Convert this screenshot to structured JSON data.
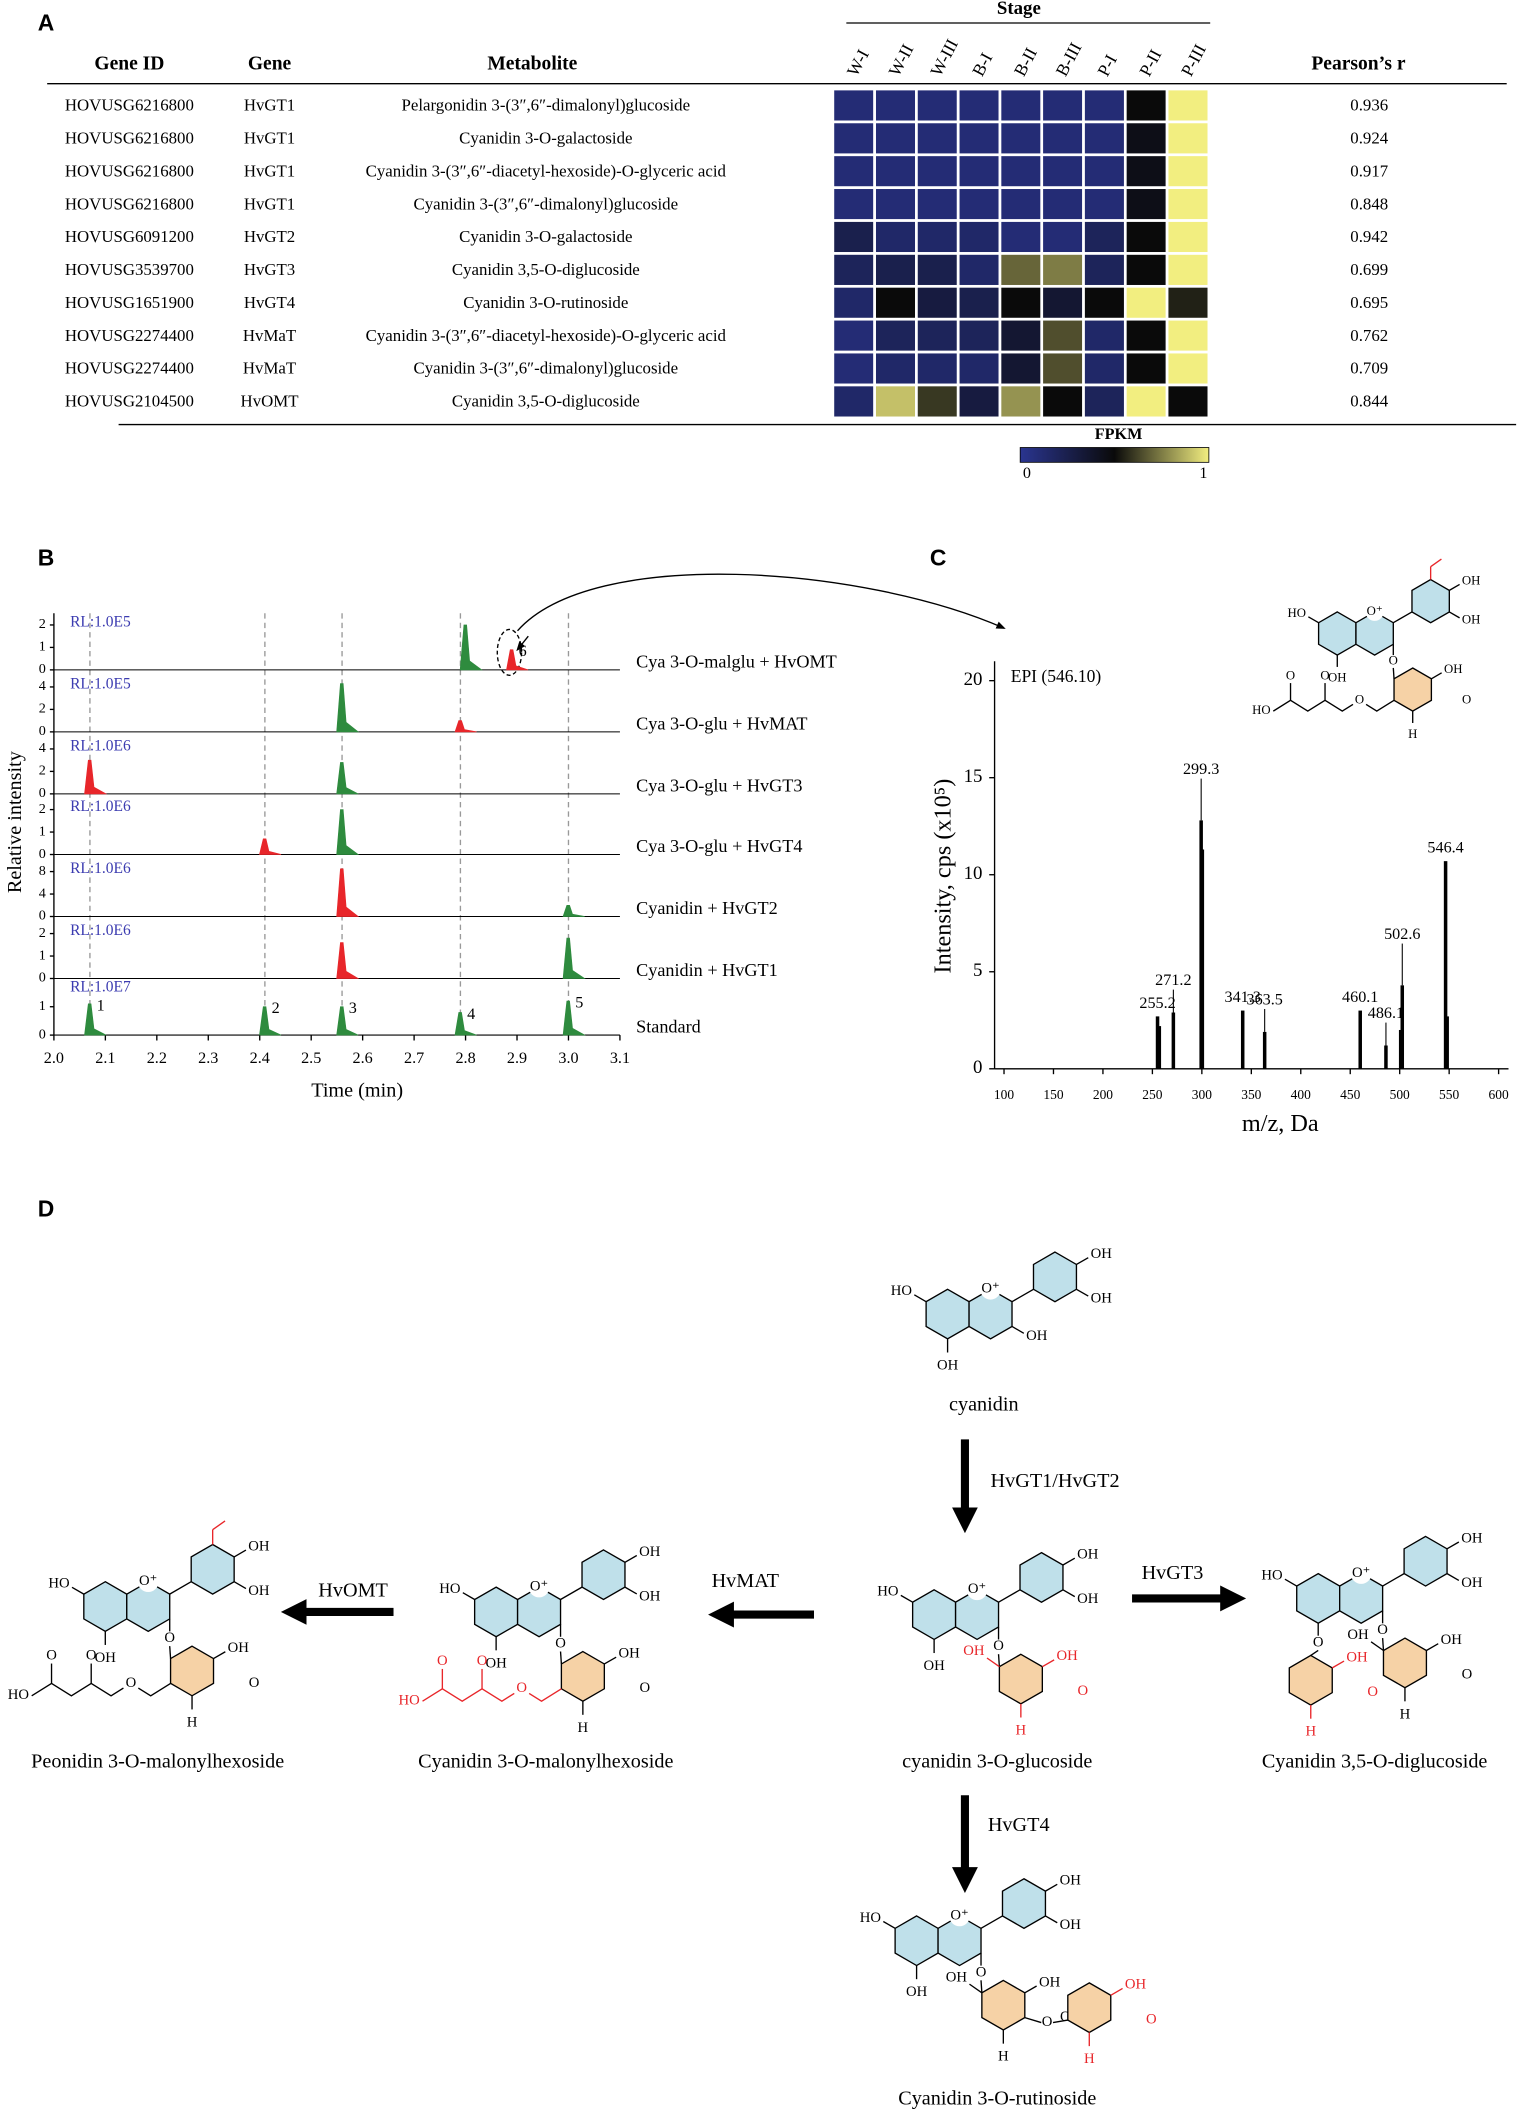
{
  "panel_labels": {
    "a": "A",
    "b": "B",
    "c": "C",
    "d": "D"
  },
  "chem_labels": {
    "HO": "HO",
    "OH": "OH",
    "O_plus": "O⁺",
    "O": "O",
    "H": "H"
  },
  "panel_a": {
    "headers": {
      "gene_id": "Gene ID",
      "gene": "Gene",
      "metabolite": "Metabolite",
      "pearson": "Pearson’s r"
    },
    "stage_title": "Stage",
    "stages": [
      "W-I",
      "W-II",
      "W-III",
      "B-I",
      "B-II",
      "B-III",
      "P-I",
      "P-II",
      "P-III"
    ],
    "rows": [
      {
        "gene_id": "HOVUSG6216800",
        "gene": "HvGT1",
        "metabolite": "Pelargonidin 3-(3″,6″-dimalonyl)glucoside",
        "fpkm": [
          0.1,
          0.1,
          0.1,
          0.1,
          0.1,
          0.1,
          0.1,
          0.5,
          1
        ],
        "pearson": 0.936
      },
      {
        "gene_id": "HOVUSG6216800",
        "gene": "HvGT1",
        "metabolite": "Cyanidin 3-O-galactoside",
        "fpkm": [
          0.1,
          0.1,
          0.1,
          0.1,
          0.1,
          0.1,
          0.1,
          0.45,
          1
        ],
        "pearson": 0.924
      },
      {
        "gene_id": "HOVUSG6216800",
        "gene": "HvGT1",
        "metabolite": "Cyanidin 3-(3″,6″-diacetyl-hexoside)-O-glyceric acid",
        "fpkm": [
          0.1,
          0.1,
          0.1,
          0.1,
          0.1,
          0.1,
          0.1,
          0.45,
          1
        ],
        "pearson": 0.917
      },
      {
        "gene_id": "HOVUSG6216800",
        "gene": "HvGT1",
        "metabolite": "Cyanidin 3-(3″,6″-dimalonyl)glucoside",
        "fpkm": [
          0.1,
          0.1,
          0.1,
          0.1,
          0.1,
          0.1,
          0.1,
          0.45,
          1
        ],
        "pearson": 0.848
      },
      {
        "gene_id": "HOVUSG6091200",
        "gene": "HvGT2",
        "metabolite": "Cyanidin 3-O-galactoside",
        "fpkm": [
          0.25,
          0.15,
          0.15,
          0.15,
          0.1,
          0.1,
          0.2,
          0.5,
          1
        ],
        "pearson": 0.942
      },
      {
        "gene_id": "HOVUSG3539700",
        "gene": "HvGT3",
        "metabolite": "Cyanidin 3,5-O-diglucoside",
        "fpkm": [
          0.2,
          0.25,
          0.25,
          0.15,
          0.7,
          0.75,
          0.2,
          0.5,
          1
        ],
        "pearson": 0.699
      },
      {
        "gene_id": "HOVUSG1651900",
        "gene": "HvGT4",
        "metabolite": "Cyanidin 3-O-rutinoside",
        "fpkm": [
          0.15,
          0.5,
          0.3,
          0.25,
          0.5,
          0.35,
          0.5,
          1,
          0.55
        ],
        "pearson": 0.695
      },
      {
        "gene_id": "HOVUSG2274400",
        "gene": "HvMaT",
        "metabolite": "Cyanidin 3-(3″,6″-diacetyl-hexoside)-O-glyceric acid",
        "fpkm": [
          0.1,
          0.2,
          0.2,
          0.2,
          0.35,
          0.65,
          0.15,
          0.5,
          1
        ],
        "pearson": 0.762
      },
      {
        "gene_id": "HOVUSG2274400",
        "gene": "HvMaT",
        "metabolite": "Cyanidin 3-(3″,6″-dimalonyl)glucoside",
        "fpkm": [
          0.1,
          0.15,
          0.15,
          0.15,
          0.35,
          0.65,
          0.15,
          0.5,
          1
        ],
        "pearson": 0.709
      },
      {
        "gene_id": "HOVUSG2104500",
        "gene": "HvOMT",
        "metabolite": "Cyanidin 3,5-O-diglucoside",
        "fpkm": [
          0.15,
          0.9,
          0.6,
          0.3,
          0.8,
          0.5,
          0.2,
          1,
          0.5
        ],
        "pearson": 0.844
      }
    ],
    "colorbar": {
      "title": "FPKM",
      "min": 0,
      "max": 1,
      "colors": [
        "#2a3590",
        "#0a0a0a",
        "#f2ee80"
      ]
    }
  },
  "panel_b": {
    "y_label": "Relative intensity",
    "x_label": "Time (min)",
    "xlim": [
      2.0,
      3.1
    ],
    "xticks": [
      {
        "value": 2,
        "label": "2.0"
      },
      2.1,
      2.2,
      2.3,
      2.4,
      2.5,
      2.6,
      2.7,
      2.8,
      2.9,
      {
        "value": 3,
        "label": "3.0"
      },
      3.1
    ],
    "standard_rt": [
      2.07,
      2.41,
      2.56,
      2.79,
      3.0
    ],
    "traces": [
      {
        "name": "Cya 3-O-malglu + HvOMT",
        "rl": "RL:1.0E5",
        "ylim": [
          0,
          2.4
        ],
        "yticks": [
          0,
          1,
          2
        ],
        "peaks": [
          {
            "rt": 2.8,
            "height": 2.0,
            "color": "#2e8b3e"
          },
          {
            "rt": 2.89,
            "height": 0.9,
            "color": "#e8262a",
            "label": "6"
          }
        ]
      },
      {
        "name": "Cya 3-O-glu + HvMAT",
        "rl": "RL:1.0E5",
        "ylim": [
          0,
          4.8
        ],
        "yticks": [
          0,
          2,
          4
        ],
        "peaks": [
          {
            "rt": 2.56,
            "height": 4.3,
            "color": "#2e8b3e"
          },
          {
            "rt": 2.79,
            "height": 1.0,
            "color": "#e8262a"
          }
        ]
      },
      {
        "name": "Cya 3-O-glu + HvGT3",
        "rl": "RL:1.0E6",
        "ylim": [
          0,
          4.8
        ],
        "yticks": [
          0,
          2,
          4
        ],
        "peaks": [
          {
            "rt": 2.07,
            "height": 3.0,
            "color": "#e8262a"
          },
          {
            "rt": 2.56,
            "height": 2.8,
            "color": "#2e8b3e"
          }
        ]
      },
      {
        "name": "Cya 3-O-glu + HvGT4",
        "rl": "RL:1.0E6",
        "ylim": [
          0,
          2.4
        ],
        "yticks": [
          0,
          1,
          2
        ],
        "peaks": [
          {
            "rt": 2.41,
            "height": 0.7,
            "color": "#e8262a"
          },
          {
            "rt": 2.56,
            "height": 2.0,
            "color": "#2e8b3e"
          }
        ]
      },
      {
        "name": "Cyanidin + HvGT2",
        "rl": "RL:1.0E6",
        "ylim": [
          0,
          9.6
        ],
        "yticks": [
          0,
          4,
          8
        ],
        "peaks": [
          {
            "rt": 2.56,
            "height": 8.5,
            "color": "#e8262a"
          },
          {
            "rt": 3.0,
            "height": 2.0,
            "color": "#2e8b3e"
          }
        ]
      },
      {
        "name": "Cyanidin + HvGT1",
        "rl": "RL:1.0E6",
        "ylim": [
          0,
          2.4
        ],
        "yticks": [
          0,
          1,
          2
        ],
        "peaks": [
          {
            "rt": 2.56,
            "height": 1.6,
            "color": "#e8262a"
          },
          {
            "rt": 3.0,
            "height": 1.8,
            "color": "#2e8b3e"
          }
        ]
      },
      {
        "name": "Standard",
        "rl": "RL:1.0E7",
        "ylim": [
          0,
          1.9
        ],
        "yticks": [
          0,
          1
        ],
        "peaks": [
          {
            "rt": 2.07,
            "height": 1.1,
            "color": "#2e8b3e",
            "label": "1"
          },
          {
            "rt": 2.41,
            "height": 1.0,
            "color": "#2e8b3e",
            "label": "2"
          },
          {
            "rt": 2.56,
            "height": 1.0,
            "color": "#2e8b3e",
            "label": "3"
          },
          {
            "rt": 2.79,
            "height": 0.8,
            "color": "#2e8b3e",
            "label": "4"
          },
          {
            "rt": 3.0,
            "height": 1.2,
            "color": "#2e8b3e",
            "label": "5"
          }
        ]
      }
    ]
  },
  "panel_c": {
    "title": "EPI (546.10)",
    "y_label": "Intensity, cps (x10⁵)",
    "x_label": "m/z, Da",
    "xlim": [
      100,
      610
    ],
    "ylim": [
      0,
      21
    ],
    "xticks": [
      100,
      150,
      200,
      250,
      300,
      350,
      400,
      450,
      500,
      550,
      600
    ],
    "yticks": [
      0,
      5,
      10,
      15,
      20
    ],
    "color": "#000000",
    "peaks": [
      {
        "mz": 255.2,
        "intensity": 2.7,
        "labeled": true
      },
      {
        "mz": 257,
        "intensity": 2.2
      },
      {
        "mz": 271.2,
        "intensity": 2.9,
        "labeled": true
      },
      {
        "mz": 299.3,
        "intensity": 12.8,
        "labeled": true
      },
      {
        "mz": 300.5,
        "intensity": 11.3
      },
      {
        "mz": 341.3,
        "intensity": 3.0,
        "labeled": true
      },
      {
        "mz": 363.5,
        "intensity": 1.9,
        "labeled": true
      },
      {
        "mz": 460.1,
        "intensity": 3.0,
        "labeled": true
      },
      {
        "mz": 486.1,
        "intensity": 1.2,
        "labeled": true
      },
      {
        "mz": 501,
        "intensity": 2.0
      },
      {
        "mz": 502.6,
        "intensity": 4.3,
        "labeled": true
      },
      {
        "mz": 546.4,
        "intensity": 10.7,
        "labeled": true
      },
      {
        "mz": 548,
        "intensity": 2.7
      }
    ]
  },
  "panel_d": {
    "compounds": [
      "cyanidin",
      "cyanidin 3-O-glucoside",
      "Cyanidin 3,5-O-diglucoside",
      "Cyanidin 3-O-malonylhexoside",
      "Peonidin 3-O-malonylhexoside",
      "Cyanidin 3-O-rutinoside"
    ],
    "enzymes": [
      "HvGT1/HvGT2",
      "HvGT3",
      "HvMAT",
      "HvOMT",
      "HvGT4"
    ]
  }
}
